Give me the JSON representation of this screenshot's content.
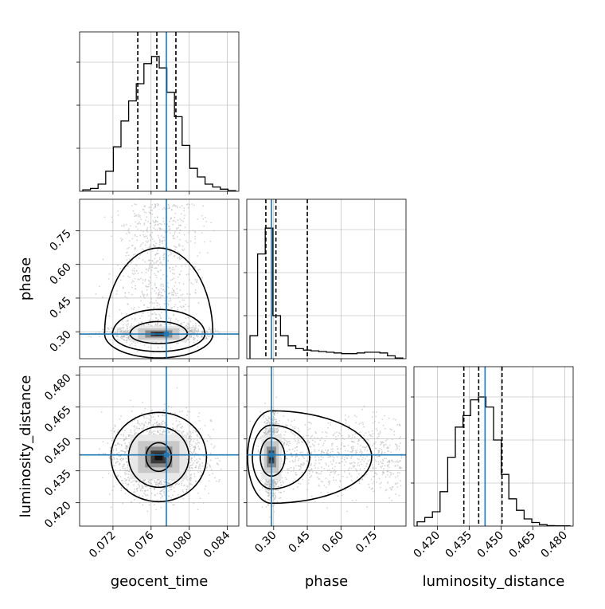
{
  "chart_data": {
    "type": "corner",
    "parameters": [
      "geocent_time",
      "phase",
      "luminosity_distance"
    ],
    "axis_labels": {
      "x": [
        "geocent_time",
        "phase",
        "luminosity_distance"
      ],
      "y": [
        "phase",
        "luminosity_distance"
      ]
    },
    "ranges": {
      "geocent_time": [
        0.0685,
        0.0852
      ],
      "phase": [
        0.18,
        0.89
      ],
      "luminosity_distance": [
        0.409,
        0.484
      ]
    },
    "ticks": {
      "geocent_time": [
        "0.072",
        "0.076",
        "0.080",
        "0.084"
      ],
      "phase": [
        "0.30",
        "0.45",
        "0.60",
        "0.75"
      ],
      "luminosity_distance": [
        "0.420",
        "0.435",
        "0.450",
        "0.465",
        "0.480"
      ]
    },
    "truths": {
      "geocent_time": 0.0776,
      "phase": 0.29,
      "luminosity_distance": 0.4425
    },
    "quantiles": {
      "geocent_time": [
        0.0746,
        0.0766,
        0.0786
      ],
      "phase": [
        0.265,
        0.31,
        0.45
      ],
      "luminosity_distance": [
        0.4325,
        0.4395,
        0.4505
      ]
    },
    "histograms": {
      "geocent_time": [
        0.01,
        0.02,
        0.05,
        0.14,
        0.31,
        0.49,
        0.63,
        0.75,
        0.89,
        0.94,
        0.86,
        0.69,
        0.52,
        0.32,
        0.16,
        0.1,
        0.05,
        0.03,
        0.015,
        0.005
      ],
      "phase": [
        0.16,
        0.73,
        0.91,
        0.3,
        0.16,
        0.09,
        0.07,
        0.06,
        0.055,
        0.05,
        0.045,
        0.04,
        0.035,
        0.035,
        0.04,
        0.045,
        0.045,
        0.04,
        0.02,
        0.005
      ],
      "luminosity_distance": [
        0.03,
        0.06,
        0.1,
        0.24,
        0.48,
        0.69,
        0.77,
        0.88,
        0.9,
        0.83,
        0.6,
        0.36,
        0.19,
        0.11,
        0.05,
        0.025,
        0.01,
        0.003,
        0.002,
        0.002
      ]
    },
    "grid": true,
    "colors": {
      "truth": "#1f77b4",
      "contour": "#000000",
      "histogram": "#000000",
      "scatter": "#b0b0b0",
      "grid": "#b0b0b0"
    }
  }
}
